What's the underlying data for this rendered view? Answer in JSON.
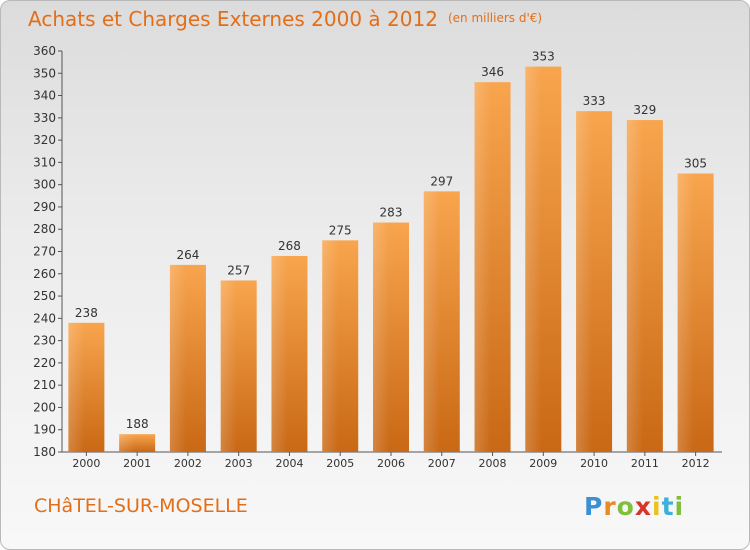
{
  "title": "Achats et Charges Externes 2000 à 2012",
  "unit": "(en milliers d'€)",
  "city": "CHâTEL-SUR-MOSELLE",
  "logo": {
    "letters": [
      "P",
      "r",
      "o",
      "x",
      "i",
      "t",
      "i"
    ],
    "colors": [
      "#3b8fd3",
      "#e98a1e",
      "#7fbf3a",
      "#d9342b",
      "#e9c21e",
      "#3bb0d8",
      "#7fbf3a"
    ]
  },
  "colors": {
    "bar": "#f0963c",
    "accent": "#e46e18"
  },
  "chart_data": {
    "type": "bar",
    "categories": [
      "2000",
      "2001",
      "2002",
      "2003",
      "2004",
      "2005",
      "2006",
      "2007",
      "2008",
      "2009",
      "2010",
      "2011",
      "2012"
    ],
    "values": [
      238,
      188,
      264,
      257,
      268,
      275,
      283,
      297,
      346,
      353,
      333,
      329,
      305
    ],
    "ylim": [
      180,
      360
    ],
    "yticks": [
      180,
      190,
      200,
      210,
      220,
      230,
      240,
      250,
      260,
      270,
      280,
      290,
      300,
      310,
      320,
      330,
      340,
      350,
      360
    ],
    "grid": false
  }
}
